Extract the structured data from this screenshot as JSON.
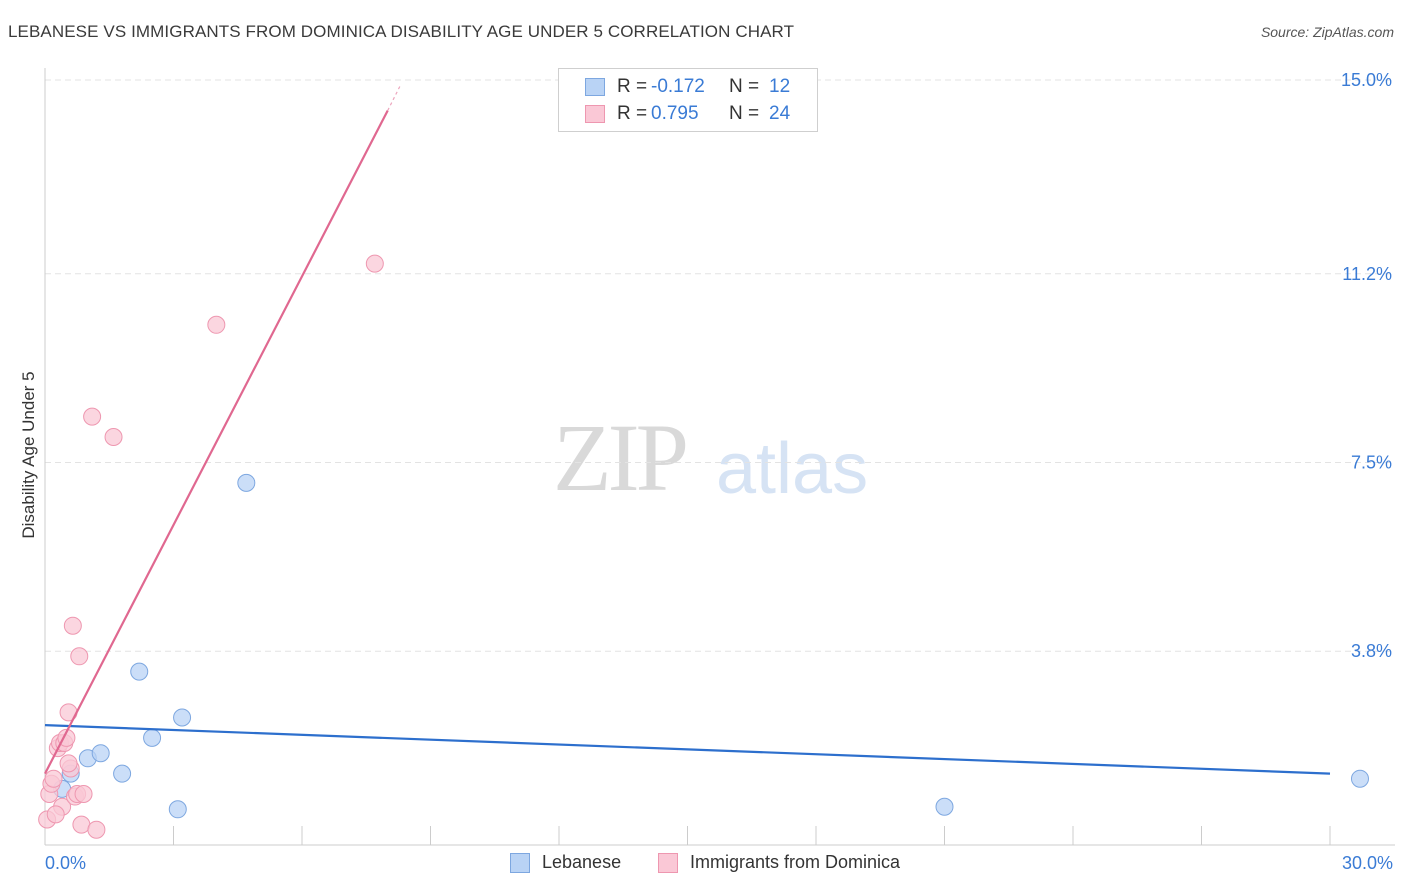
{
  "title": "LEBANESE VS IMMIGRANTS FROM DOMINICA DISABILITY AGE UNDER 5 CORRELATION CHART",
  "source": "Source: ZipAtlas.com",
  "watermark": {
    "zip": "ZIP",
    "atlas": "atlas"
  },
  "legend_top": [
    {
      "r_label": "R =",
      "r_value": "-0.172",
      "n_label": "N =",
      "n_value": "12",
      "color": "#b9d3f5",
      "border": "#7da7e0"
    },
    {
      "r_label": "R =",
      "r_value": "0.795",
      "n_label": "N =",
      "n_value": "24",
      "color": "#fac8d6",
      "border": "#ee97b0"
    }
  ],
  "legend_bottom": [
    {
      "label": "Lebanese",
      "color": "#b9d3f5",
      "border": "#7da7e0"
    },
    {
      "label": "Immigrants from Dominica",
      "color": "#fac8d6",
      "border": "#ee97b0"
    }
  ],
  "chart_data": {
    "type": "scatter",
    "xlabel": "",
    "ylabel": "Disability Age Under 5",
    "xlim": [
      0,
      30
    ],
    "ylim": [
      0,
      15
    ],
    "x_tick_labels": [
      "0.0%",
      "30.0%"
    ],
    "y_ticks": [
      3.8,
      7.5,
      11.2,
      15.0
    ],
    "y_tick_labels": [
      "3.8%",
      "7.5%",
      "11.2%",
      "15.0%"
    ],
    "grid": true,
    "series": [
      {
        "name": "Lebanese",
        "color": "#7da7e0",
        "fill": "#b9d3f5",
        "line_color": "#2d6fcd",
        "trend": {
          "x": [
            0,
            30
          ],
          "y": [
            2.35,
            1.4
          ]
        },
        "points": [
          {
            "x": 0.4,
            "y": 1.1
          },
          {
            "x": 0.6,
            "y": 1.4
          },
          {
            "x": 1.0,
            "y": 1.7
          },
          {
            "x": 1.3,
            "y": 1.8
          },
          {
            "x": 1.8,
            "y": 1.4
          },
          {
            "x": 2.2,
            "y": 3.4
          },
          {
            "x": 2.5,
            "y": 2.1
          },
          {
            "x": 3.1,
            "y": 0.7
          },
          {
            "x": 3.2,
            "y": 2.5
          },
          {
            "x": 4.7,
            "y": 7.1
          },
          {
            "x": 21.0,
            "y": 0.75
          },
          {
            "x": 30.7,
            "y": 1.3
          }
        ]
      },
      {
        "name": "Immigrants from Dominica",
        "color": "#ee97b0",
        "fill": "#fac8d6",
        "line_color": "#e06890",
        "trend": {
          "x": [
            0,
            8.0
          ],
          "y": [
            1.4,
            14.4
          ]
        },
        "trend_dash_end": {
          "x": 8.3,
          "y": 14.9
        },
        "points": [
          {
            "x": 0.05,
            "y": 0.5
          },
          {
            "x": 0.1,
            "y": 1.0
          },
          {
            "x": 0.15,
            "y": 1.2
          },
          {
            "x": 0.3,
            "y": 1.9
          },
          {
            "x": 0.35,
            "y": 2.0
          },
          {
            "x": 0.4,
            "y": 0.75
          },
          {
            "x": 0.45,
            "y": 2.0
          },
          {
            "x": 0.5,
            "y": 2.1
          },
          {
            "x": 0.55,
            "y": 2.6
          },
          {
            "x": 0.6,
            "y": 1.5
          },
          {
            "x": 0.65,
            "y": 4.3
          },
          {
            "x": 0.7,
            "y": 0.95
          },
          {
            "x": 0.75,
            "y": 1.0
          },
          {
            "x": 0.8,
            "y": 3.7
          },
          {
            "x": 0.85,
            "y": 0.4
          },
          {
            "x": 0.9,
            "y": 1.0
          },
          {
            "x": 1.1,
            "y": 8.4
          },
          {
            "x": 1.2,
            "y": 0.3
          },
          {
            "x": 1.6,
            "y": 8.0
          },
          {
            "x": 4.0,
            "y": 10.2
          },
          {
            "x": 7.7,
            "y": 11.4
          },
          {
            "x": 0.2,
            "y": 1.3
          },
          {
            "x": 0.25,
            "y": 0.6
          },
          {
            "x": 0.55,
            "y": 1.6
          }
        ]
      }
    ]
  }
}
